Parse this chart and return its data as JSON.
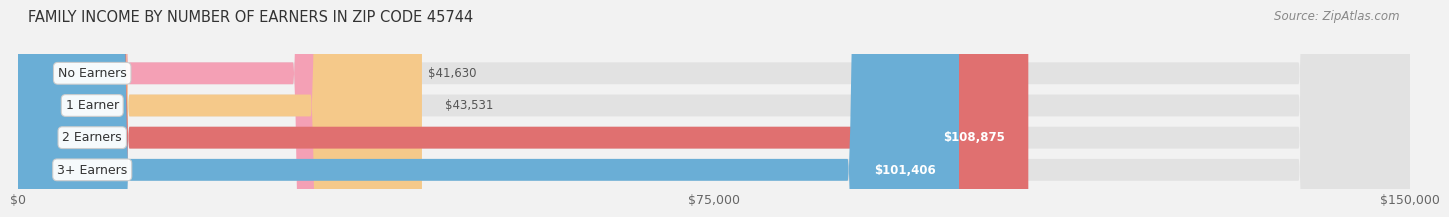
{
  "title": "FAMILY INCOME BY NUMBER OF EARNERS IN ZIP CODE 45744",
  "source": "Source: ZipAtlas.com",
  "categories": [
    "No Earners",
    "1 Earner",
    "2 Earners",
    "3+ Earners"
  ],
  "values": [
    41630,
    43531,
    108875,
    101406
  ],
  "bar_colors": [
    "#f4a0b5",
    "#f5c98a",
    "#e07070",
    "#6aaed6"
  ],
  "label_colors": [
    "#555555",
    "#555555",
    "#ffffff",
    "#ffffff"
  ],
  "value_labels": [
    "$41,630",
    "$43,531",
    "$108,875",
    "$101,406"
  ],
  "xlim": [
    0,
    150000
  ],
  "xticks": [
    0,
    75000,
    150000
  ],
  "xtick_labels": [
    "$0",
    "$75,000",
    "$150,000"
  ],
  "background_color": "#f2f2f2",
  "bar_background_color": "#e2e2e2",
  "title_fontsize": 10.5,
  "source_fontsize": 8.5,
  "label_fontsize": 9,
  "value_fontsize": 8.5
}
